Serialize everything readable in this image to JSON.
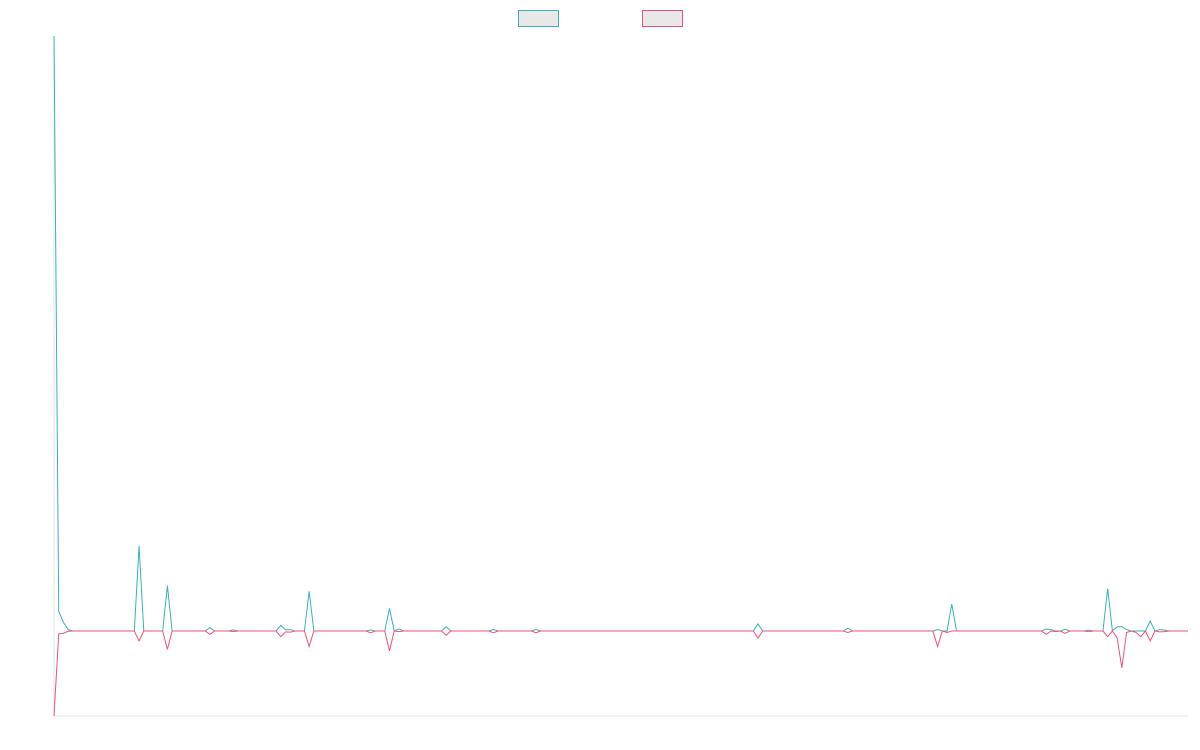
{
  "chart_data": {
    "type": "line",
    "title": "",
    "xlabel": "",
    "ylabel": "",
    "x_count": 240,
    "ylim": [
      -3.0,
      21.0
    ],
    "grid": false,
    "legend_placement": "top-center",
    "series": [
      {
        "color": "#36b3b3",
        "legend_fill": "#e8e8e8",
        "baseline": 0,
        "points": [
          [
            0,
            21.0
          ],
          [
            1,
            0.7
          ],
          [
            2,
            0.3
          ],
          [
            3,
            0.05
          ],
          [
            4,
            0
          ],
          [
            17,
            0
          ],
          [
            18,
            3.0
          ],
          [
            19,
            0
          ],
          [
            23,
            0
          ],
          [
            24,
            1.6
          ],
          [
            25,
            0
          ],
          [
            32,
            0
          ],
          [
            33,
            0.12
          ],
          [
            34,
            0
          ],
          [
            37,
            0
          ],
          [
            38,
            0.04
          ],
          [
            39,
            0
          ],
          [
            47,
            0
          ],
          [
            48,
            0.2
          ],
          [
            49,
            0.04
          ],
          [
            50,
            0.05
          ],
          [
            51,
            0
          ],
          [
            53,
            0
          ],
          [
            54,
            1.4
          ],
          [
            55,
            0
          ],
          [
            66,
            0
          ],
          [
            67,
            0.04
          ],
          [
            68,
            0
          ],
          [
            70,
            0
          ],
          [
            71,
            0.8
          ],
          [
            72,
            0
          ],
          [
            73,
            0.07
          ],
          [
            74,
            0
          ],
          [
            82,
            0
          ],
          [
            83,
            0.15
          ],
          [
            84,
            0
          ],
          [
            92,
            0
          ],
          [
            93,
            0.05
          ],
          [
            94,
            0
          ],
          [
            101,
            0
          ],
          [
            102,
            0.05
          ],
          [
            103,
            0
          ],
          [
            148,
            0
          ],
          [
            149,
            0.25
          ],
          [
            150,
            0
          ],
          [
            167,
            0
          ],
          [
            168,
            0.1
          ],
          [
            169,
            0
          ],
          [
            186,
            0
          ],
          [
            187,
            0.05
          ],
          [
            188,
            0
          ],
          [
            189,
            0
          ],
          [
            190,
            0.95
          ],
          [
            191,
            0
          ],
          [
            209,
            0
          ],
          [
            210,
            0.07
          ],
          [
            211,
            0.05
          ],
          [
            212,
            0
          ],
          [
            213,
            0
          ],
          [
            214,
            0.06
          ],
          [
            215,
            0
          ],
          [
            218,
            0
          ],
          [
            219,
            0.03
          ],
          [
            220,
            0
          ],
          [
            222,
            0
          ],
          [
            223,
            1.5
          ],
          [
            224,
            0
          ],
          [
            225,
            0.15
          ],
          [
            226,
            0.15
          ],
          [
            227,
            0.05
          ],
          [
            228,
            0
          ],
          [
            231,
            0
          ],
          [
            232,
            0.35
          ],
          [
            233,
            0
          ],
          [
            234,
            0.05
          ],
          [
            235,
            0.03
          ],
          [
            236,
            0
          ],
          [
            240,
            0
          ]
        ]
      },
      {
        "color": "#f0507a",
        "legend_fill": "#e8e8e8",
        "baseline": 0,
        "points": [
          [
            0,
            -3.0
          ],
          [
            1,
            -0.1
          ],
          [
            2,
            -0.08
          ],
          [
            3,
            -0.01
          ],
          [
            4,
            0
          ],
          [
            17,
            0
          ],
          [
            18,
            -0.35
          ],
          [
            19,
            0
          ],
          [
            23,
            0
          ],
          [
            24,
            -0.65
          ],
          [
            25,
            0
          ],
          [
            32,
            0
          ],
          [
            33,
            -0.12
          ],
          [
            34,
            0
          ],
          [
            37,
            0
          ],
          [
            38,
            -0.02
          ],
          [
            39,
            0
          ],
          [
            47,
            0
          ],
          [
            48,
            -0.2
          ],
          [
            49,
            -0.03
          ],
          [
            50,
            -0.04
          ],
          [
            51,
            0
          ],
          [
            53,
            0
          ],
          [
            54,
            -0.55
          ],
          [
            55,
            0
          ],
          [
            66,
            0
          ],
          [
            67,
            -0.06
          ],
          [
            68,
            0
          ],
          [
            70,
            0
          ],
          [
            71,
            -0.7
          ],
          [
            72,
            0
          ],
          [
            73,
            -0.02
          ],
          [
            74,
            0
          ],
          [
            82,
            0
          ],
          [
            83,
            -0.15
          ],
          [
            84,
            0
          ],
          [
            92,
            0
          ],
          [
            93,
            -0.06
          ],
          [
            94,
            0
          ],
          [
            101,
            0
          ],
          [
            102,
            -0.06
          ],
          [
            103,
            0
          ],
          [
            148,
            0
          ],
          [
            149,
            -0.25
          ],
          [
            150,
            0
          ],
          [
            167,
            0
          ],
          [
            168,
            -0.05
          ],
          [
            169,
            0
          ],
          [
            186,
            0
          ],
          [
            187,
            -0.55
          ],
          [
            188,
            0
          ],
          [
            189,
            -0.05
          ],
          [
            190,
            0
          ],
          [
            191,
            0
          ],
          [
            209,
            0
          ],
          [
            210,
            -0.12
          ],
          [
            211,
            0
          ],
          [
            212,
            -0.02
          ],
          [
            213,
            0
          ],
          [
            214,
            -0.08
          ],
          [
            215,
            0
          ],
          [
            218,
            0
          ],
          [
            219,
            -0.02
          ],
          [
            220,
            0
          ],
          [
            222,
            0
          ],
          [
            223,
            -0.2
          ],
          [
            224,
            0
          ],
          [
            225,
            -0.25
          ],
          [
            226,
            -1.3
          ],
          [
            227,
            -0.05
          ],
          [
            228,
            0
          ],
          [
            229,
            -0.05
          ],
          [
            230,
            -0.2
          ],
          [
            231,
            0
          ],
          [
            232,
            -0.35
          ],
          [
            233,
            0
          ],
          [
            234,
            -0.03
          ],
          [
            235,
            -0.02
          ],
          [
            236,
            0
          ],
          [
            240,
            0
          ]
        ]
      }
    ]
  }
}
